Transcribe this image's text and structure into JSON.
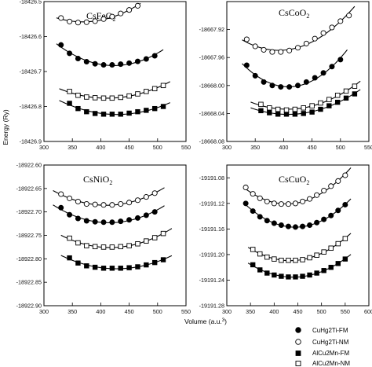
{
  "figure": {
    "ylabel": "Energy (Ry)",
    "xlabel": "Volume (a.u.3)"
  },
  "legend": [
    {
      "label": "CuHg2Ti-FM",
      "marker": "filled-circle"
    },
    {
      "label": "CuHg2Ti-NM",
      "marker": "open-circle"
    },
    {
      "label": "AlCu2Mn-FM",
      "marker": "filled-square"
    },
    {
      "label": "AlCu2Mn-NM",
      "marker": "open-square"
    }
  ],
  "chart_data": [
    {
      "type": "scatter",
      "title": "CsFeO2",
      "xlim": [
        300,
        550
      ],
      "ylim": [
        -18426.9,
        -18426.5
      ],
      "xticks": [
        300,
        350,
        400,
        450,
        500,
        550
      ],
      "yticks": [
        -18426.5,
        -18426.6,
        -18426.7,
        -18426.8,
        -18426.9
      ],
      "ytick_labels": [
        "-18426.5",
        "-18426.6",
        "-18426.7",
        "-18426.8",
        "-18426.9"
      ],
      "series": [
        {
          "name": "CuHg2Ti-FM",
          "x": [
            330,
            345,
            360,
            375,
            390,
            405,
            420,
            435,
            450,
            465,
            480,
            495
          ],
          "y": [
            -18426.624,
            -18426.648,
            -18426.663,
            -18426.672,
            -18426.678,
            -18426.681,
            -18426.681,
            -18426.679,
            -18426.676,
            -18426.671,
            -18426.664,
            -18426.655
          ]
        },
        {
          "name": "CuHg2Ti-NM",
          "x": [
            330,
            345,
            360,
            375,
            390,
            405,
            420,
            435,
            450,
            465
          ],
          "y": [
            -18426.547,
            -18426.557,
            -18426.56,
            -18426.559,
            -18426.556,
            -18426.55,
            -18426.543,
            -18426.534,
            -18426.524,
            -18426.512
          ]
        },
        {
          "name": "AlCu2Mn-FM",
          "x": [
            345,
            360,
            375,
            390,
            405,
            420,
            435,
            450,
            465,
            480,
            495,
            510
          ],
          "y": [
            -18426.791,
            -18426.806,
            -18426.815,
            -18426.82,
            -18426.822,
            -18426.822,
            -18426.822,
            -18426.819,
            -18426.815,
            -18426.811,
            -18426.806,
            -18426.8
          ]
        },
        {
          "name": "AlCu2Mn-NM",
          "x": [
            345,
            360,
            375,
            390,
            405,
            420,
            435,
            450,
            465,
            480,
            495,
            510
          ],
          "y": [
            -18426.757,
            -18426.768,
            -18426.773,
            -18426.775,
            -18426.776,
            -18426.776,
            -18426.774,
            -18426.77,
            -18426.764,
            -18426.757,
            -18426.749,
            -18426.74
          ]
        }
      ],
      "fits": [
        {
          "series": "CuHg2Ti-FM",
          "x_range": [
            322,
            510
          ]
        },
        {
          "series": "CuHg2Ti-NM",
          "x_range": [
            322,
            470
          ]
        },
        {
          "series": "AlCu2Mn-FM",
          "x_range": [
            327,
            522
          ]
        },
        {
          "series": "AlCu2Mn-NM",
          "x_range": [
            327,
            522
          ]
        }
      ]
    },
    {
      "type": "scatter",
      "title": "CsCoO2",
      "xlim": [
        300,
        550
      ],
      "ylim": [
        -18668.08,
        -18667.88
      ],
      "xticks": [
        300,
        350,
        400,
        450,
        500,
        550
      ],
      "yticks": [
        -18667.92,
        -18667.96,
        -18668.0,
        -18668.04,
        -18668.08
      ],
      "ytick_labels": [
        "-18667.92",
        "-18667.96",
        "-18668.00",
        "-18668.04",
        "-18668.08"
      ],
      "series": [
        {
          "name": "CuHg2Ti-FM",
          "x": [
            335,
            350,
            365,
            380,
            395,
            410,
            425,
            440,
            455,
            470,
            485,
            500
          ],
          "y": [
            -18667.971,
            -18667.986,
            -18667.995,
            -18668.0,
            -18668.002,
            -18668.002,
            -18668.0,
            -18667.995,
            -18667.989,
            -18667.982,
            -18667.973,
            -18667.963
          ]
        },
        {
          "name": "CuHg2Ti-NM",
          "x": [
            335,
            350,
            365,
            380,
            395,
            410,
            425,
            440,
            455,
            470,
            485,
            500,
            515
          ],
          "y": [
            -18667.934,
            -18667.944,
            -18667.949,
            -18667.952,
            -18667.952,
            -18667.95,
            -18667.946,
            -18667.94,
            -18667.933,
            -18667.925,
            -18667.917,
            -18667.908,
            -18667.9
          ]
        },
        {
          "name": "AlCu2Mn-FM",
          "x": [
            360,
            375,
            390,
            405,
            420,
            435,
            450,
            465,
            480,
            495,
            510,
            525
          ],
          "y": [
            -18668.036,
            -18668.039,
            -18668.041,
            -18668.041,
            -18668.041,
            -18668.04,
            -18668.038,
            -18668.034,
            -18668.029,
            -18668.024,
            -18668.018,
            -18668.012
          ]
        },
        {
          "name": "AlCu2Mn-NM",
          "x": [
            360,
            375,
            390,
            405,
            420,
            435,
            450,
            465,
            480,
            495,
            510,
            525
          ],
          "y": [
            -18668.027,
            -18668.032,
            -18668.034,
            -18668.035,
            -18668.034,
            -18668.032,
            -18668.029,
            -18668.025,
            -18668.02,
            -18668.014,
            -18668.008,
            -18668.001
          ]
        }
      ],
      "fits": [
        {
          "series": "CuHg2Ti-FM",
          "x_range": [
            327,
            512
          ]
        },
        {
          "series": "CuHg2Ti-NM",
          "x_range": [
            327,
            525
          ]
        },
        {
          "series": "AlCu2Mn-FM",
          "x_range": [
            342,
            535
          ]
        },
        {
          "series": "AlCu2Mn-NM",
          "x_range": [
            342,
            535
          ]
        }
      ]
    },
    {
      "type": "scatter",
      "title": "CsNiO2",
      "xlim": [
        300,
        550
      ],
      "ylim": [
        -18922.9,
        -18922.6
      ],
      "xticks": [
        300,
        350,
        400,
        450,
        500,
        550
      ],
      "yticks": [
        -18922.6,
        -18922.65,
        -18922.7,
        -18922.75,
        -18922.8,
        -18922.85,
        -18922.9
      ],
      "ytick_labels": [
        "-18922.60",
        "-18922.65",
        "-18922.70",
        "-18922.75",
        "-18922.80",
        "-18922.85",
        "-18922.90"
      ],
      "series": [
        {
          "name": "CuHg2Ti-FM",
          "x": [
            330,
            345,
            360,
            375,
            390,
            405,
            420,
            435,
            450,
            465,
            480,
            495
          ],
          "y": [
            -18922.691,
            -18922.706,
            -18922.714,
            -18922.719,
            -18922.721,
            -18922.722,
            -18922.722,
            -18922.72,
            -18922.717,
            -18922.713,
            -18922.707,
            -18922.7
          ]
        },
        {
          "name": "CuHg2Ti-NM",
          "x": [
            330,
            345,
            360,
            375,
            390,
            405,
            420,
            435,
            450,
            465,
            480,
            495
          ],
          "y": [
            -18922.662,
            -18922.671,
            -18922.678,
            -18922.683,
            -18922.684,
            -18922.685,
            -18922.685,
            -18922.683,
            -18922.68,
            -18922.675,
            -18922.668,
            -18922.66
          ]
        },
        {
          "name": "AlCu2Mn-FM",
          "x": [
            345,
            360,
            375,
            390,
            405,
            420,
            435,
            450,
            465,
            480,
            495,
            510
          ],
          "y": [
            -18922.798,
            -18922.809,
            -18922.815,
            -18922.818,
            -18922.82,
            -18922.82,
            -18922.82,
            -18922.819,
            -18922.817,
            -18922.813,
            -18922.808,
            -18922.802
          ]
        },
        {
          "name": "AlCu2Mn-NM",
          "x": [
            345,
            360,
            375,
            390,
            405,
            420,
            435,
            450,
            465,
            480,
            495,
            510
          ],
          "y": [
            -18922.756,
            -18922.766,
            -18922.772,
            -18922.774,
            -18922.775,
            -18922.775,
            -18922.774,
            -18922.772,
            -18922.768,
            -18922.762,
            -18922.755,
            -18922.746
          ]
        }
      ],
      "fits": [
        {
          "series": "CuHg2Ti-FM",
          "x_range": [
            316,
            512
          ]
        },
        {
          "series": "CuHg2Ti-NM",
          "x_range": [
            316,
            512
          ]
        },
        {
          "series": "AlCu2Mn-FM",
          "x_range": [
            330,
            525
          ]
        },
        {
          "series": "AlCu2Mn-NM",
          "x_range": [
            330,
            525
          ]
        }
      ]
    },
    {
      "type": "scatter",
      "title": "CsCuO2",
      "xlim": [
        300,
        600
      ],
      "ylim": [
        -19191.28,
        -19191.06
      ],
      "xticks": [
        300,
        350,
        400,
        450,
        500,
        550,
        600
      ],
      "yticks": [
        -19191.08,
        -19191.12,
        -19191.16,
        -19191.2,
        -19191.24,
        -19191.28
      ],
      "ytick_labels": [
        "-19191.08",
        "-19191.12",
        "-19191.16",
        "-19191.20",
        "-19191.24",
        "-19191.28"
      ],
      "series": [
        {
          "name": "CuHg2Ti-FM",
          "x": [
            340,
            355,
            370,
            385,
            400,
            415,
            430,
            445,
            460,
            475,
            490,
            505,
            520,
            535,
            550
          ],
          "y": [
            -19191.12,
            -19191.132,
            -19191.141,
            -19191.147,
            -19191.151,
            -19191.154,
            -19191.156,
            -19191.157,
            -19191.156,
            -19191.154,
            -19191.15,
            -19191.145,
            -19191.139,
            -19191.131,
            -19191.122
          ]
        },
        {
          "name": "CuHg2Ti-NM",
          "x": [
            340,
            355,
            370,
            385,
            400,
            415,
            430,
            445,
            460,
            475,
            490,
            505,
            520,
            535,
            550
          ],
          "y": [
            -19191.095,
            -19191.105,
            -19191.112,
            -19191.117,
            -19191.12,
            -19191.121,
            -19191.121,
            -19191.12,
            -19191.117,
            -19191.113,
            -19191.107,
            -19191.1,
            -19191.093,
            -19191.085,
            -19191.076
          ]
        },
        {
          "name": "AlCu2Mn-FM",
          "x": [
            355,
            370,
            385,
            400,
            415,
            430,
            445,
            460,
            475,
            490,
            505,
            520,
            535,
            550
          ],
          "y": [
            -19191.216,
            -19191.224,
            -19191.229,
            -19191.232,
            -19191.234,
            -19191.235,
            -19191.235,
            -19191.234,
            -19191.232,
            -19191.229,
            -19191.225,
            -19191.22,
            -19191.214,
            -19191.207
          ]
        },
        {
          "name": "AlCu2Mn-NM",
          "x": [
            355,
            370,
            385,
            400,
            415,
            430,
            445,
            460,
            475,
            490,
            505,
            520,
            535,
            550
          ],
          "y": [
            -19191.192,
            -19191.199,
            -19191.204,
            -19191.207,
            -19191.209,
            -19191.209,
            -19191.209,
            -19191.208,
            -19191.205,
            -19191.201,
            -19191.196,
            -19191.19,
            -19191.183,
            -19191.175
          ]
        }
      ],
      "fits": [
        {
          "series": "CuHg2Ti-FM",
          "x_range": [
            335,
            562
          ]
        },
        {
          "series": "CuHg2Ti-NM",
          "x_range": [
            335,
            562
          ]
        },
        {
          "series": "AlCu2Mn-FM",
          "x_range": [
            345,
            562
          ]
        },
        {
          "series": "AlCu2Mn-NM",
          "x_range": [
            345,
            562
          ]
        }
      ]
    }
  ]
}
